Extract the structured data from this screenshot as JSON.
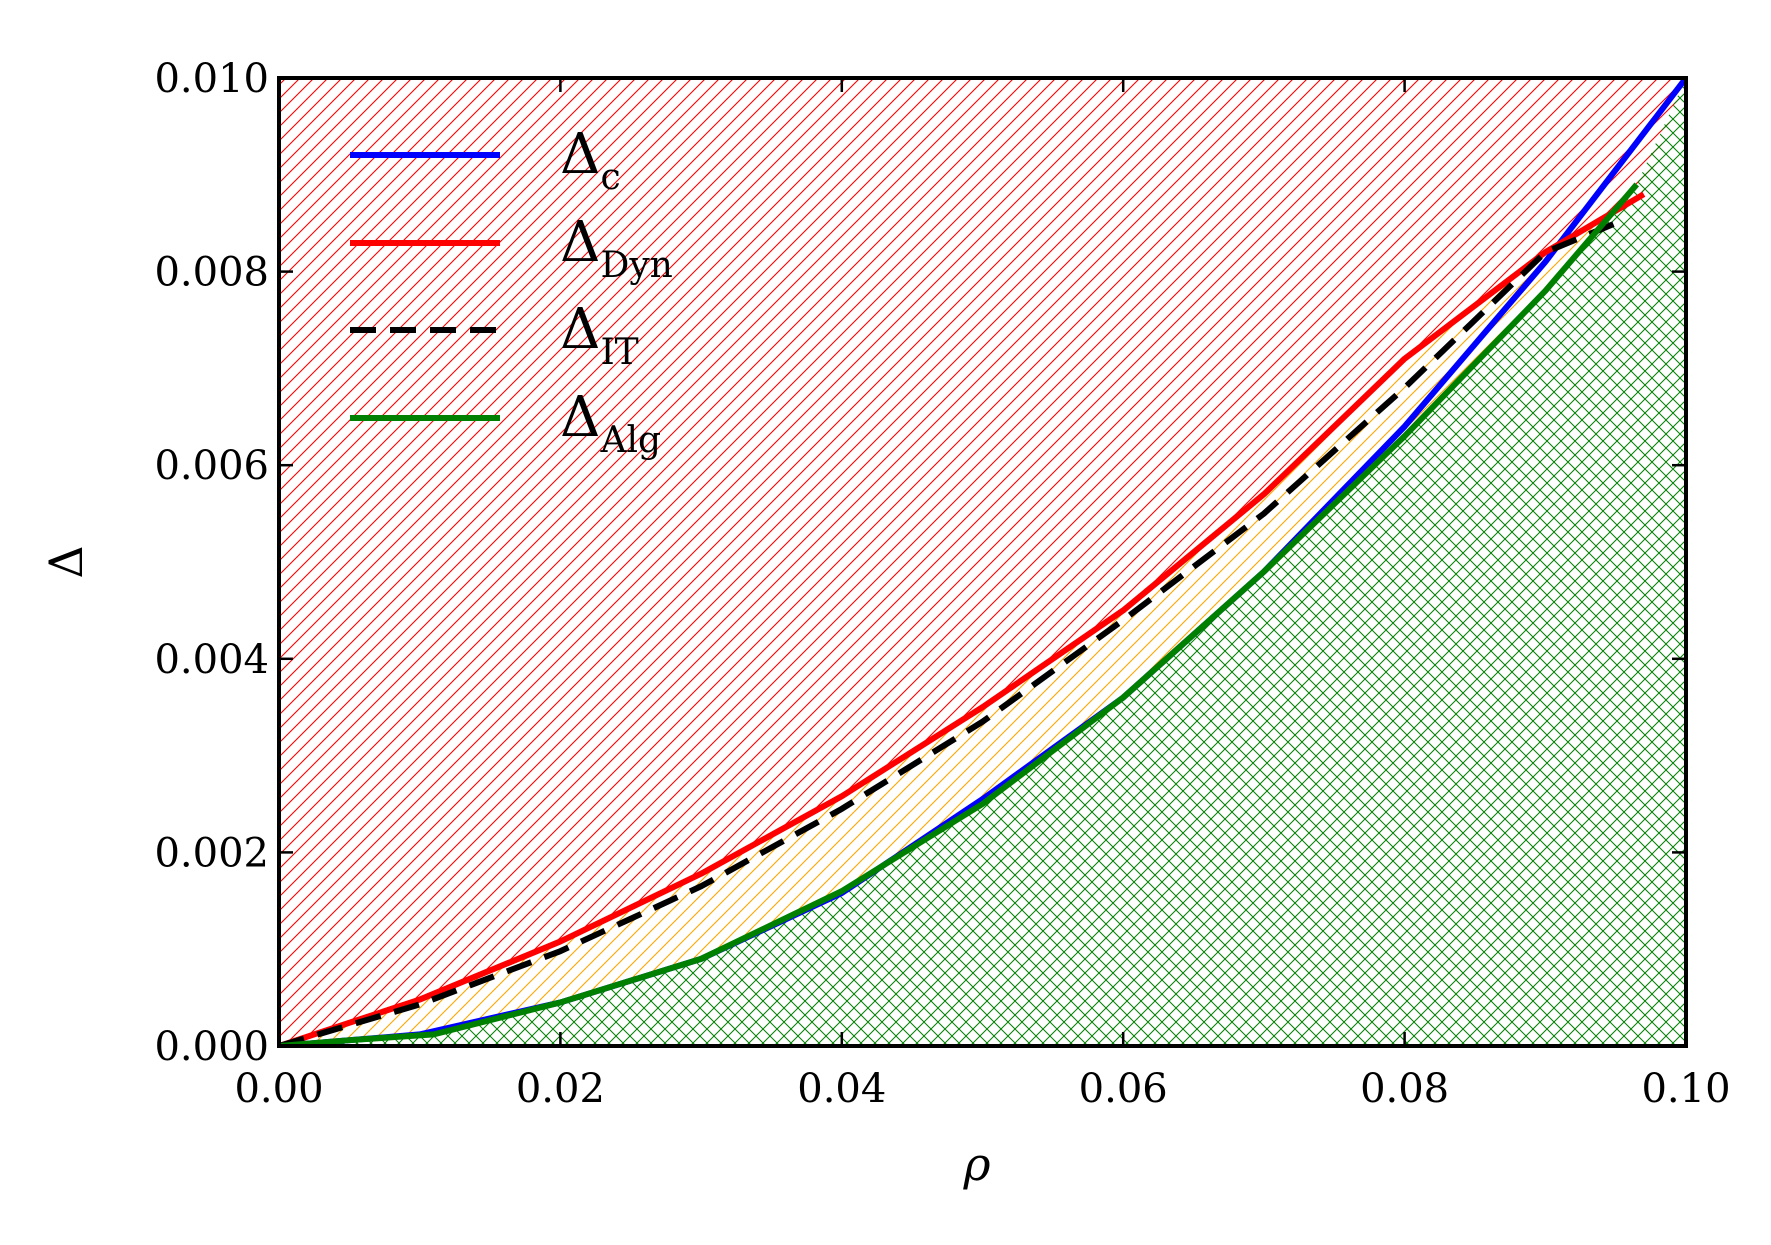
{
  "chart_data": {
    "type": "line",
    "title": "",
    "xlabel": "ρ",
    "ylabel": "Δ",
    "xlim": [
      0.0,
      0.1
    ],
    "ylim": [
      0.0,
      0.01
    ],
    "x_ticks": [
      "0.00",
      "0.02",
      "0.04",
      "0.06",
      "0.08",
      "0.10"
    ],
    "y_ticks": [
      "0.000",
      "0.002",
      "0.004",
      "0.006",
      "0.008",
      "0.010"
    ],
    "grid": false,
    "legend_position": "top-left",
    "regions": [
      {
        "between": [
          "Δ_Dyn",
          "top"
        ],
        "fill": "hatch-diagonal",
        "color": "#ff0000"
      },
      {
        "between": [
          "Δ_Alg",
          "Δ_Dyn"
        ],
        "fill": "hatch-diagonal",
        "color": "#ffa500"
      },
      {
        "between": [
          "bottom",
          "Δ_Alg"
        ],
        "fill": "hatch-cross",
        "color": "#008000"
      }
    ],
    "series": [
      {
        "name": "Δ",
        "subscript": "c",
        "color": "#0000ff",
        "style": "solid",
        "x": [
          0.0,
          0.01,
          0.02,
          0.03,
          0.04,
          0.05,
          0.06,
          0.07,
          0.08,
          0.09,
          0.1
        ],
        "y": [
          0.0,
          0.00012,
          0.00045,
          0.0009,
          0.00158,
          0.00255,
          0.0036,
          0.0049,
          0.0064,
          0.0081,
          0.01
        ]
      },
      {
        "name": "Δ",
        "subscript": "Dyn",
        "color": "#ff0000",
        "style": "solid",
        "x": [
          0.0,
          0.01,
          0.02,
          0.03,
          0.04,
          0.05,
          0.06,
          0.07,
          0.08,
          0.09,
          0.097
        ],
        "y": [
          0.0,
          0.00048,
          0.00108,
          0.00178,
          0.00258,
          0.0035,
          0.0045,
          0.0057,
          0.0071,
          0.0082,
          0.0088
        ]
      },
      {
        "name": "Δ",
        "subscript": "IT",
        "color": "#000000",
        "style": "dashed",
        "x": [
          0.0,
          0.01,
          0.02,
          0.03,
          0.04,
          0.05,
          0.06,
          0.07,
          0.08,
          0.09,
          0.095
        ],
        "y": [
          0.0,
          0.00043,
          0.00098,
          0.00165,
          0.00245,
          0.00335,
          0.0044,
          0.0055,
          0.0068,
          0.0082,
          0.0085
        ]
      },
      {
        "name": "Δ",
        "subscript": "Alg",
        "color": "#008000",
        "style": "solid",
        "x": [
          0.0,
          0.005,
          0.011,
          0.02,
          0.03,
          0.04,
          0.05,
          0.06,
          0.07,
          0.08,
          0.09,
          0.0965
        ],
        "y": [
          0.0,
          6e-05,
          0.00012,
          0.00045,
          0.0009,
          0.0016,
          0.0025,
          0.0036,
          0.0049,
          0.0063,
          0.0078,
          0.0089
        ]
      }
    ]
  }
}
